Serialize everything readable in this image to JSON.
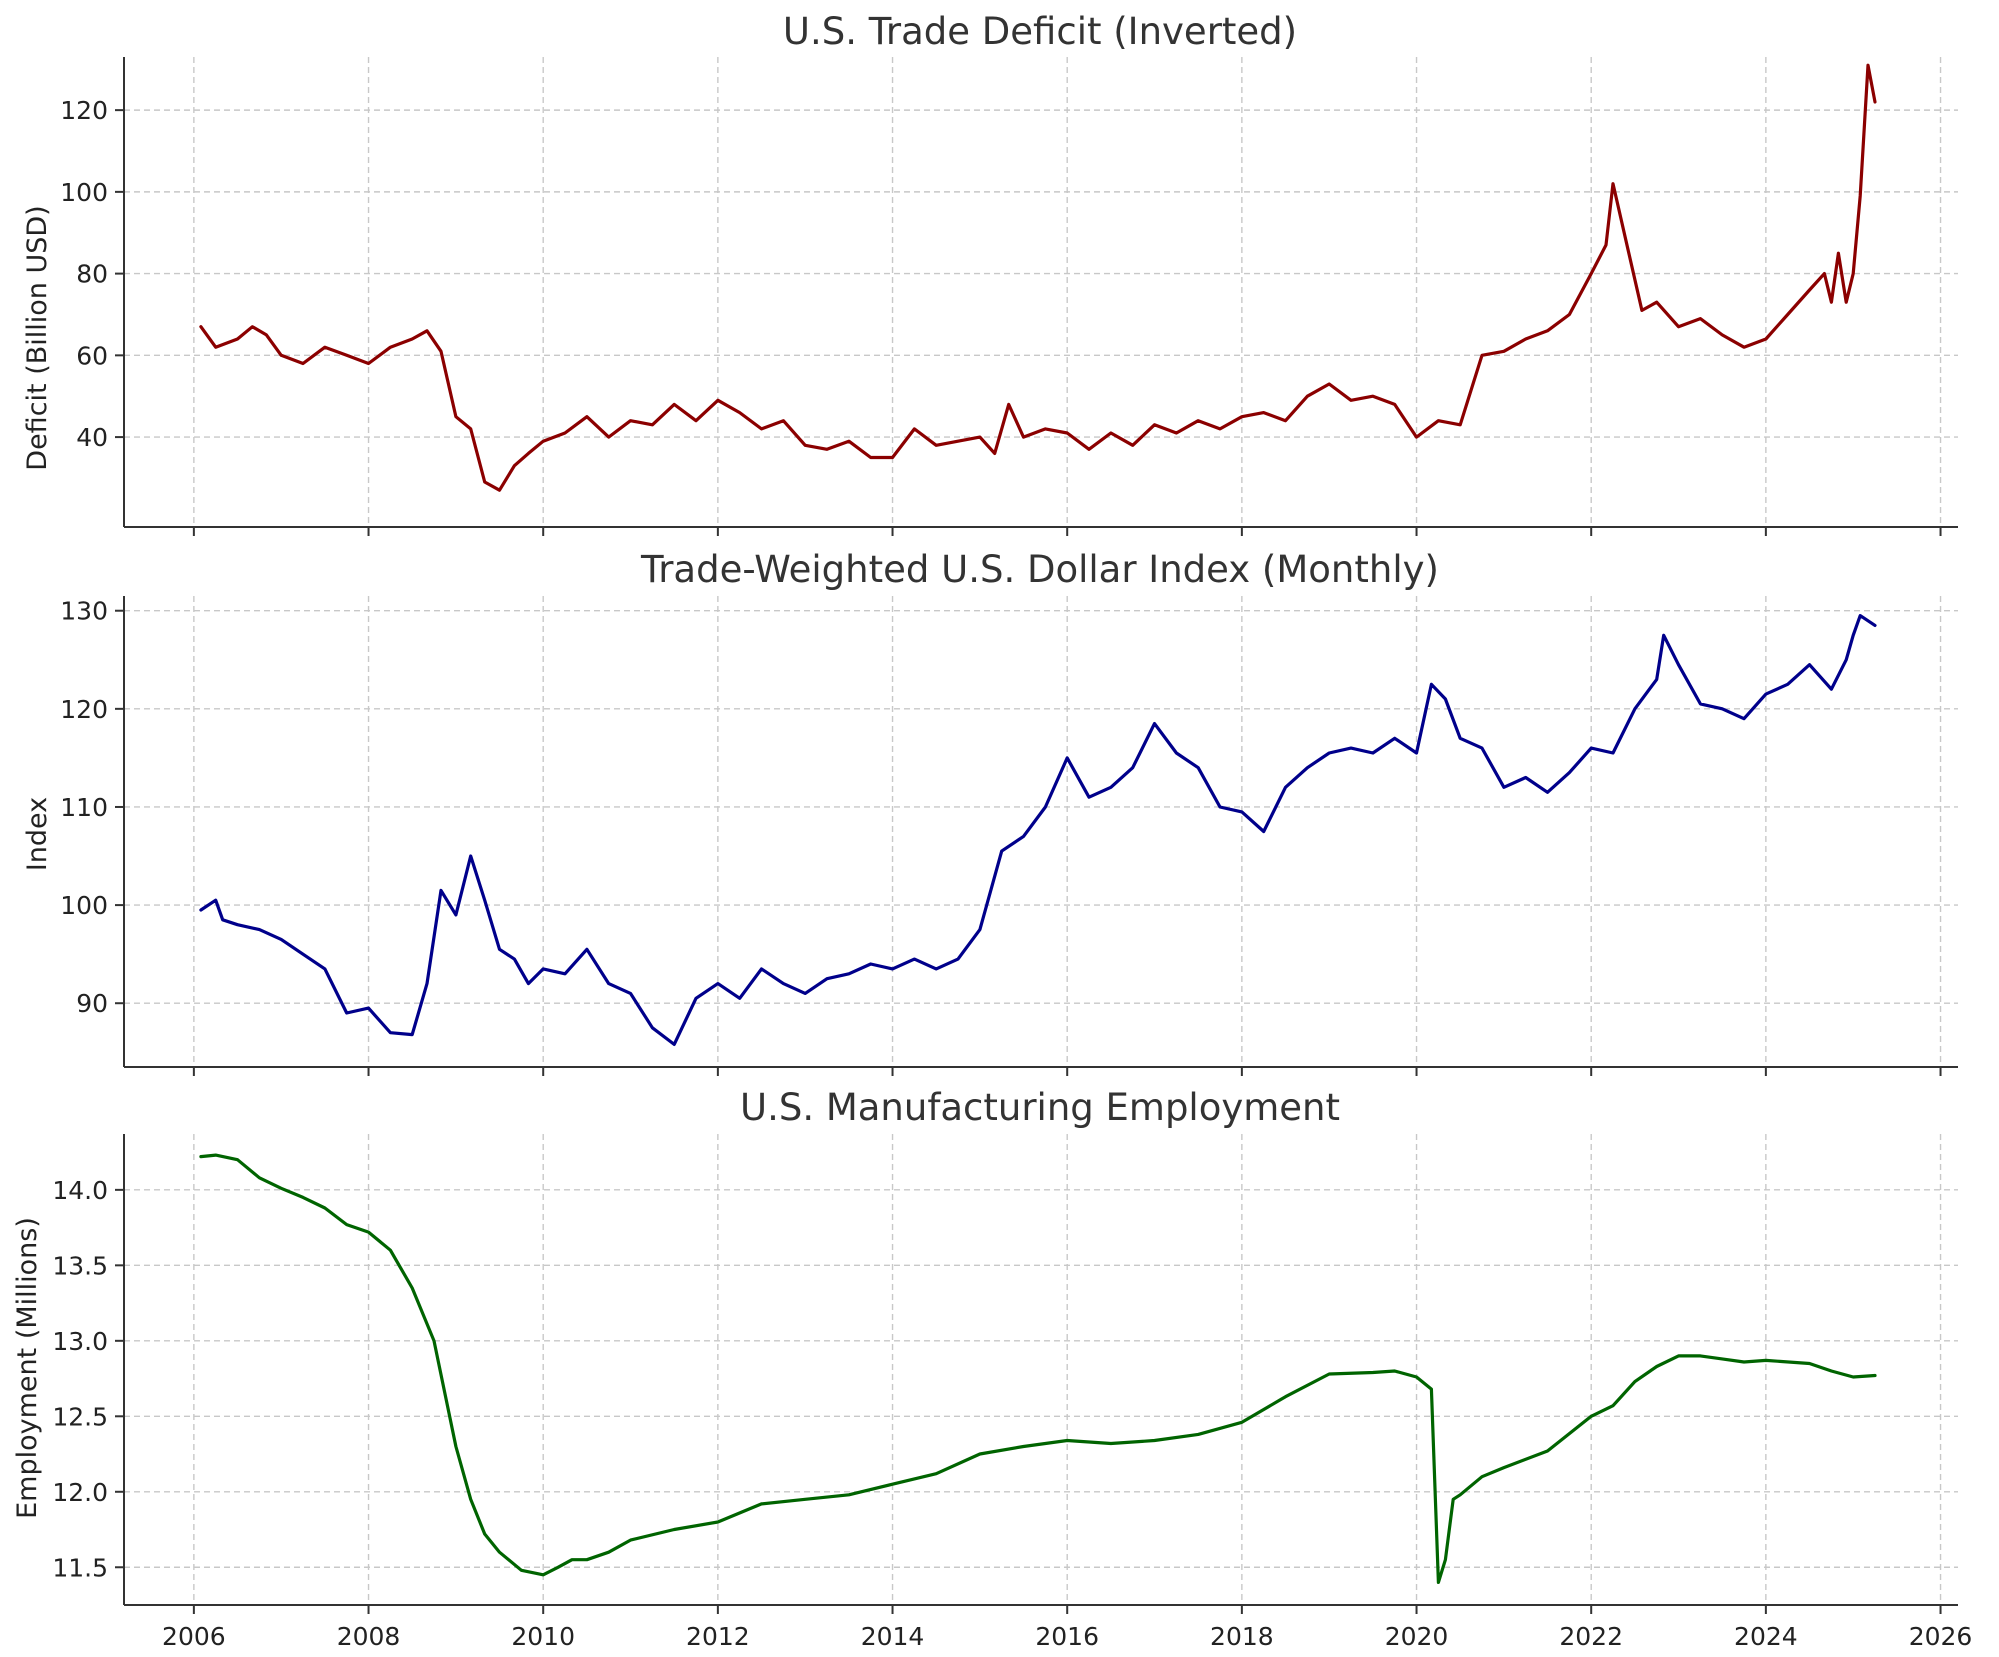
{
  "chart_data": [
    {
      "type": "line",
      "title": "U.S. Trade Deficit (Inverted)",
      "xlabel": "",
      "ylabel": "Deficit (Billion USD)",
      "xlim": [
        2005.2,
        2026.2
      ],
      "ylim": [
        18,
        133
      ],
      "x_ticks": [
        2006,
        2008,
        2010,
        2012,
        2014,
        2016,
        2018,
        2020,
        2022,
        2024,
        2026
      ],
      "x_tick_labels_shown": false,
      "y_ticks": [
        40,
        60,
        80,
        100,
        120
      ],
      "y_tick_labels": [
        "40",
        "60",
        "80",
        "100",
        "120"
      ],
      "grid": true,
      "series": [
        {
          "name": "Trade Deficit",
          "color": "#8b0000",
          "x": [
            2006.08,
            2006.25,
            2006.5,
            2006.67,
            2006.83,
            2007.0,
            2007.25,
            2007.5,
            2007.75,
            2008.0,
            2008.25,
            2008.5,
            2008.67,
            2008.83,
            2009.0,
            2009.17,
            2009.33,
            2009.5,
            2009.67,
            2009.83,
            2010.0,
            2010.25,
            2010.5,
            2010.75,
            2011.0,
            2011.25,
            2011.5,
            2011.75,
            2012.0,
            2012.25,
            2012.5,
            2012.75,
            2013.0,
            2013.25,
            2013.5,
            2013.75,
            2014.0,
            2014.25,
            2014.5,
            2014.75,
            2015.0,
            2015.17,
            2015.33,
            2015.5,
            2015.75,
            2016.0,
            2016.25,
            2016.5,
            2016.75,
            2017.0,
            2017.25,
            2017.5,
            2017.75,
            2018.0,
            2018.25,
            2018.5,
            2018.75,
            2019.0,
            2019.25,
            2019.5,
            2019.75,
            2020.0,
            2020.25,
            2020.5,
            2020.75,
            2021.0,
            2021.25,
            2021.5,
            2021.75,
            2022.0,
            2022.17,
            2022.25,
            2022.42,
            2022.58,
            2022.75,
            2023.0,
            2023.25,
            2023.5,
            2023.75,
            2024.0,
            2024.25,
            2024.5,
            2024.67,
            2024.75,
            2024.83,
            2024.92,
            2025.0,
            2025.08,
            2025.17,
            2025.25
          ],
          "values": [
            67,
            62,
            64,
            67,
            65,
            60,
            58,
            62,
            60,
            58,
            62,
            64,
            66,
            61,
            45,
            42,
            29,
            27,
            33,
            36,
            39,
            41,
            45,
            40,
            44,
            43,
            48,
            44,
            49,
            46,
            42,
            44,
            38,
            37,
            39,
            35,
            35,
            42,
            38,
            39,
            40,
            36,
            48,
            40,
            42,
            41,
            37,
            41,
            38,
            43,
            41,
            44,
            42,
            45,
            46,
            44,
            50,
            53,
            49,
            50,
            48,
            40,
            44,
            43,
            60,
            61,
            64,
            66,
            70,
            80,
            87,
            102,
            86,
            71,
            73,
            67,
            69,
            65,
            62,
            64,
            70,
            76,
            80,
            73,
            85,
            73,
            80,
            99,
            131,
            122
          ]
        }
      ]
    },
    {
      "type": "line",
      "title": "Trade-Weighted U.S. Dollar Index (Monthly)",
      "xlabel": "",
      "ylabel": "Index",
      "xlim": [
        2005.2,
        2026.2
      ],
      "ylim": [
        83.5,
        131.5
      ],
      "x_ticks": [
        2006,
        2008,
        2010,
        2012,
        2014,
        2016,
        2018,
        2020,
        2022,
        2024,
        2026
      ],
      "x_tick_labels_shown": false,
      "y_ticks": [
        90,
        100,
        110,
        120,
        130
      ],
      "y_tick_labels": [
        "90",
        "100",
        "110",
        "120",
        "130"
      ],
      "grid": true,
      "series": [
        {
          "name": "Dollar Index",
          "color": "#00008b",
          "x": [
            2006.08,
            2006.25,
            2006.33,
            2006.5,
            2006.75,
            2007.0,
            2007.25,
            2007.5,
            2007.75,
            2008.0,
            2008.25,
            2008.5,
            2008.67,
            2008.83,
            2009.0,
            2009.17,
            2009.33,
            2009.5,
            2009.67,
            2009.83,
            2010.0,
            2010.25,
            2010.5,
            2010.75,
            2011.0,
            2011.25,
            2011.5,
            2011.75,
            2012.0,
            2012.25,
            2012.5,
            2012.75,
            2013.0,
            2013.25,
            2013.5,
            2013.75,
            2014.0,
            2014.25,
            2014.5,
            2014.75,
            2015.0,
            2015.25,
            2015.5,
            2015.75,
            2016.0,
            2016.25,
            2016.5,
            2016.75,
            2017.0,
            2017.25,
            2017.5,
            2017.75,
            2018.0,
            2018.25,
            2018.5,
            2018.75,
            2019.0,
            2019.25,
            2019.5,
            2019.75,
            2020.0,
            2020.17,
            2020.33,
            2020.5,
            2020.75,
            2021.0,
            2021.25,
            2021.5,
            2021.75,
            2022.0,
            2022.25,
            2022.5,
            2022.75,
            2022.83,
            2023.0,
            2023.25,
            2023.5,
            2023.75,
            2024.0,
            2024.25,
            2024.5,
            2024.75,
            2024.92,
            2025.0,
            2025.08,
            2025.25
          ],
          "values": [
            99.5,
            100.5,
            98.5,
            98.0,
            97.5,
            96.5,
            95.0,
            93.5,
            89.0,
            89.5,
            87.0,
            86.8,
            92.0,
            101.5,
            99.0,
            105.0,
            100.5,
            95.5,
            94.5,
            92.0,
            93.5,
            93.0,
            95.5,
            92.0,
            91.0,
            87.5,
            85.8,
            90.5,
            92.0,
            90.5,
            93.5,
            92.0,
            91.0,
            92.5,
            93.0,
            94.0,
            93.5,
            94.5,
            93.5,
            94.5,
            97.5,
            105.5,
            107.0,
            110.0,
            115.0,
            111.0,
            112.0,
            114.0,
            118.5,
            115.5,
            114.0,
            110.0,
            109.5,
            107.5,
            112.0,
            114.0,
            115.5,
            116.0,
            115.5,
            117.0,
            115.5,
            122.5,
            121.0,
            117.0,
            116.0,
            112.0,
            113.0,
            111.5,
            113.5,
            116.0,
            115.5,
            120.0,
            123.0,
            127.5,
            124.5,
            120.5,
            120.0,
            119.0,
            121.5,
            122.5,
            124.5,
            122.0,
            125.0,
            127.5,
            129.5,
            128.5
          ]
        }
      ]
    },
    {
      "type": "line",
      "title": "U.S. Manufacturing Employment",
      "xlabel": "",
      "ylabel": "Employment (Millions)",
      "xlim": [
        2005.2,
        2026.2
      ],
      "ylim": [
        11.25,
        14.37
      ],
      "x_ticks": [
        2006,
        2008,
        2010,
        2012,
        2014,
        2016,
        2018,
        2020,
        2022,
        2024,
        2026
      ],
      "x_tick_labels": [
        "2006",
        "2008",
        "2010",
        "2012",
        "2014",
        "2016",
        "2018",
        "2020",
        "2022",
        "2024",
        "2026"
      ],
      "x_tick_labels_shown": true,
      "y_ticks": [
        11.5,
        12.0,
        12.5,
        13.0,
        13.5,
        14.0
      ],
      "y_tick_labels": [
        "11.5",
        "12.0",
        "12.5",
        "13.0",
        "13.5",
        "14.0"
      ],
      "grid": true,
      "series": [
        {
          "name": "Manufacturing Employment",
          "color": "#006400",
          "x": [
            2006.08,
            2006.25,
            2006.5,
            2006.75,
            2007.0,
            2007.25,
            2007.5,
            2007.75,
            2008.0,
            2008.25,
            2008.5,
            2008.75,
            2009.0,
            2009.17,
            2009.33,
            2009.5,
            2009.75,
            2010.0,
            2010.17,
            2010.33,
            2010.5,
            2010.75,
            2011.0,
            2011.5,
            2012.0,
            2012.5,
            2013.0,
            2013.5,
            2014.0,
            2014.5,
            2015.0,
            2015.5,
            2016.0,
            2016.5,
            2017.0,
            2017.5,
            2018.0,
            2018.5,
            2019.0,
            2019.5,
            2019.75,
            2020.0,
            2020.17,
            2020.25,
            2020.33,
            2020.42,
            2020.5,
            2020.75,
            2021.0,
            2021.5,
            2022.0,
            2022.25,
            2022.5,
            2022.75,
            2023.0,
            2023.25,
            2023.5,
            2023.75,
            2024.0,
            2024.5,
            2024.75,
            2025.0,
            2025.25
          ],
          "values": [
            14.22,
            14.23,
            14.2,
            14.08,
            14.01,
            13.95,
            13.88,
            13.77,
            13.72,
            13.6,
            13.35,
            13.0,
            12.3,
            11.95,
            11.72,
            11.6,
            11.48,
            11.45,
            11.5,
            11.55,
            11.55,
            11.6,
            11.68,
            11.75,
            11.8,
            11.92,
            11.95,
            11.98,
            12.05,
            12.12,
            12.25,
            12.3,
            12.34,
            12.32,
            12.34,
            12.38,
            12.46,
            12.63,
            12.78,
            12.79,
            12.8,
            12.76,
            12.68,
            11.4,
            11.55,
            11.95,
            11.98,
            12.1,
            12.16,
            12.27,
            12.5,
            12.57,
            12.73,
            12.83,
            12.9,
            12.9,
            12.88,
            12.86,
            12.87,
            12.85,
            12.8,
            12.76,
            12.77
          ]
        }
      ]
    }
  ]
}
